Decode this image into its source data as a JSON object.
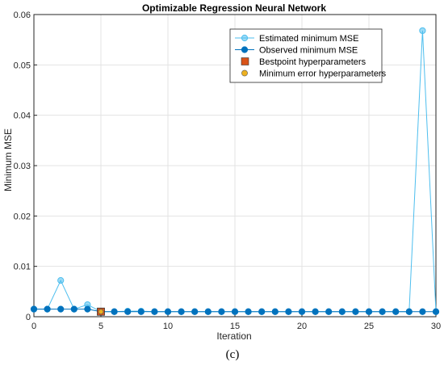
{
  "chart_data": {
    "type": "line",
    "title": "Optimizable Regression Neural Network",
    "xlabel": "Iteration",
    "ylabel": "Minimum MSE",
    "xlim": [
      0,
      30
    ],
    "ylim": [
      0,
      0.06
    ],
    "xticks": [
      0,
      5,
      10,
      15,
      20,
      25,
      30
    ],
    "yticks": [
      0,
      0.01,
      0.02,
      0.03,
      0.04,
      0.05,
      0.06
    ],
    "ytick_labels": [
      "0",
      "0.01",
      "0.02",
      "0.03",
      "0.04",
      "0.05",
      "0.06"
    ],
    "grid": true,
    "legend_position": "top-right",
    "x": [
      0,
      1,
      2,
      3,
      4,
      5,
      6,
      7,
      8,
      9,
      10,
      11,
      12,
      13,
      14,
      15,
      16,
      17,
      18,
      19,
      20,
      21,
      22,
      23,
      24,
      25,
      26,
      27,
      28,
      29,
      30
    ],
    "series": [
      {
        "name": "Estimated minimum MSE",
        "color": "#4dbeee",
        "values": [
          0.0015,
          0.0015,
          0.0072,
          0.0015,
          0.0024,
          0.001,
          0.001,
          0.0011,
          0.0011,
          0.001,
          0.001,
          0.001,
          0.001,
          0.001,
          0.001,
          0.001,
          0.001,
          0.001,
          0.001,
          0.001,
          0.001,
          0.001,
          0.001,
          0.001,
          0.001,
          0.001,
          0.001,
          0.001,
          0.001,
          0.0568,
          0.001
        ]
      },
      {
        "name": "Observed minimum MSE",
        "color": "#0072bd",
        "values": [
          0.0015,
          0.0015,
          0.0015,
          0.0015,
          0.0015,
          0.001,
          0.001,
          0.001,
          0.001,
          0.001,
          0.001,
          0.001,
          0.001,
          0.001,
          0.001,
          0.001,
          0.001,
          0.001,
          0.001,
          0.001,
          0.001,
          0.001,
          0.001,
          0.001,
          0.001,
          0.001,
          0.001,
          0.001,
          0.001,
          0.001,
          0.001
        ]
      }
    ],
    "markers": [
      {
        "name": "Bestpoint hyperparameters",
        "shape": "square",
        "color": "#d95319",
        "x": 5,
        "y": 0.001
      },
      {
        "name": "Minimum error hyperparameters",
        "shape": "circle",
        "color": "#edb120",
        "x": 5,
        "y": 0.001
      }
    ],
    "caption": "(c)"
  }
}
